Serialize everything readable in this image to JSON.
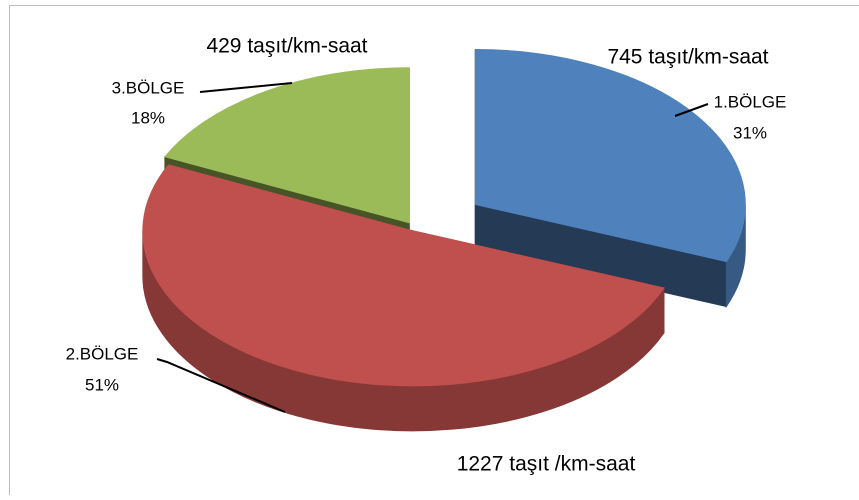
{
  "chart_data": {
    "type": "pie",
    "categories": [
      "1.BÖLGE",
      "2.BÖLGE",
      "3.BÖLGE"
    ],
    "values": [
      31,
      51,
      18
    ],
    "value_labels": [
      "31%",
      "51%",
      "18%"
    ],
    "colors": [
      "#4f81bd",
      "#c0504d",
      "#9bbb59"
    ],
    "annotations": [
      "745 taşıt/km-saat",
      "1227 taşıt /km-saat",
      "429 taşıt/km-saat"
    ]
  }
}
